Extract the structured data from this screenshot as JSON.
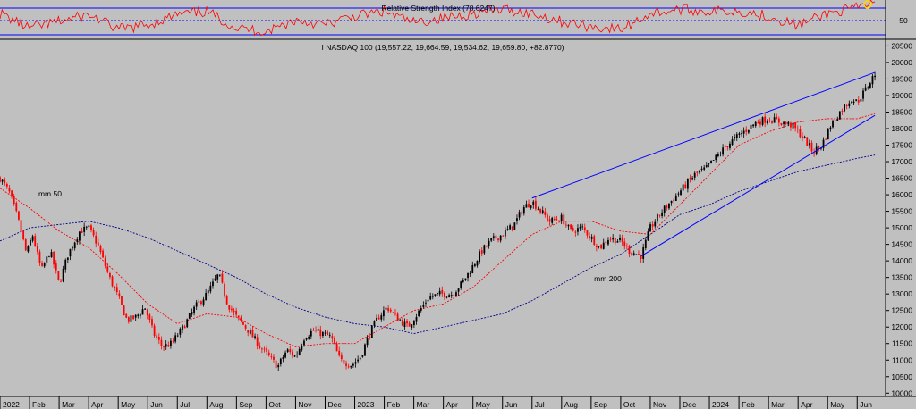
{
  "chart_data": {
    "type": "candlestick",
    "title": "I NASDAQ 100 (19,557.22, 19,664.59, 19,534.62, 19,659.80, +82.8770)",
    "rsi_title": "Relative Strength Index (78.6247)",
    "rsi_tick": "50",
    "rsi_levels": [
      30,
      50,
      70
    ],
    "ylim": [
      9900,
      20700
    ],
    "y_ticks": [
      "10000",
      "10500",
      "11000",
      "11500",
      "12000",
      "12500",
      "13000",
      "13500",
      "14000",
      "14500",
      "15000",
      "15500",
      "16000",
      "16500",
      "17000",
      "17500",
      "18000",
      "18500",
      "19000",
      "19500",
      "20000",
      "20500"
    ],
    "x_labels": [
      "2022",
      "Feb",
      "Mar",
      "Apr",
      "May",
      "Jun",
      "Jul",
      "Aug",
      "Sep",
      "Oct",
      "Nov",
      "Dec",
      "2023",
      "Feb",
      "Mar",
      "Apr",
      "May",
      "Jun",
      "Jul",
      "Aug",
      "Sep",
      "Oct",
      "Nov",
      "Dec",
      "2024",
      "Feb",
      "Mar",
      "Apr",
      "May",
      "Jun"
    ],
    "x_label_months": [
      0,
      1,
      2,
      3,
      4,
      5,
      6,
      7,
      8,
      9,
      10,
      11,
      12,
      13,
      14,
      15,
      16,
      17,
      18,
      19,
      20,
      21,
      22,
      23,
      24,
      25,
      26,
      27,
      28,
      29
    ],
    "price_path": [
      [
        0,
        16500
      ],
      [
        0.3,
        16100
      ],
      [
        0.6,
        15300
      ],
      [
        0.9,
        14200
      ],
      [
        1.1,
        14800
      ],
      [
        1.4,
        13700
      ],
      [
        1.7,
        14300
      ],
      [
        2.0,
        13300
      ],
      [
        2.3,
        14200
      ],
      [
        2.7,
        14900
      ],
      [
        3.0,
        15000
      ],
      [
        3.3,
        14500
      ],
      [
        3.7,
        13500
      ],
      [
        4.0,
        12900
      ],
      [
        4.3,
        12200
      ],
      [
        4.6,
        12300
      ],
      [
        4.9,
        12600
      ],
      [
        5.2,
        11800
      ],
      [
        5.5,
        11400
      ],
      [
        5.8,
        11500
      ],
      [
        6.2,
        12000
      ],
      [
        6.6,
        12600
      ],
      [
        7.0,
        13000
      ],
      [
        7.4,
        13600
      ],
      [
        7.7,
        12700
      ],
      [
        8.0,
        12300
      ],
      [
        8.4,
        11900
      ],
      [
        8.8,
        11400
      ],
      [
        9.1,
        11100
      ],
      [
        9.4,
        10800
      ],
      [
        9.7,
        11300
      ],
      [
        10.0,
        11100
      ],
      [
        10.3,
        11700
      ],
      [
        10.6,
        11900
      ],
      [
        10.9,
        11800
      ],
      [
        11.2,
        11700
      ],
      [
        11.5,
        11000
      ],
      [
        11.9,
        10850
      ],
      [
        12.2,
        11100
      ],
      [
        12.5,
        11800
      ],
      [
        12.8,
        12300
      ],
      [
        13.1,
        12600
      ],
      [
        13.4,
        12300
      ],
      [
        13.8,
        12000
      ],
      [
        14.2,
        12500
      ],
      [
        14.5,
        12900
      ],
      [
        14.9,
        13000
      ],
      [
        15.3,
        13000
      ],
      [
        15.6,
        13300
      ],
      [
        15.9,
        13700
      ],
      [
        16.3,
        14300
      ],
      [
        16.6,
        14600
      ],
      [
        17.0,
        14800
      ],
      [
        17.4,
        15100
      ],
      [
        17.7,
        15600
      ],
      [
        18.0,
        15800
      ],
      [
        18.3,
        15500
      ],
      [
        18.6,
        15200
      ],
      [
        19.0,
        15300
      ],
      [
        19.3,
        14900
      ],
      [
        19.7,
        15000
      ],
      [
        20.0,
        14700
      ],
      [
        20.3,
        14400
      ],
      [
        20.6,
        14700
      ],
      [
        21.0,
        14600
      ],
      [
        21.3,
        14300
      ],
      [
        21.7,
        14150
      ],
      [
        22.0,
        15000
      ],
      [
        22.4,
        15500
      ],
      [
        22.8,
        15900
      ],
      [
        23.1,
        16200
      ],
      [
        23.5,
        16600
      ],
      [
        23.9,
        16800
      ],
      [
        24.2,
        17100
      ],
      [
        24.6,
        17500
      ],
      [
        25.0,
        17800
      ],
      [
        25.3,
        18000
      ],
      [
        25.6,
        18200
      ],
      [
        26.0,
        18300
      ],
      [
        26.4,
        18200
      ],
      [
        26.8,
        18100
      ],
      [
        27.2,
        17700
      ],
      [
        27.5,
        17300
      ],
      [
        27.8,
        17500
      ],
      [
        28.1,
        18100
      ],
      [
        28.5,
        18600
      ],
      [
        28.8,
        18900
      ],
      [
        29.0,
        18800
      ],
      [
        29.3,
        19200
      ],
      [
        29.6,
        19660
      ]
    ],
    "ma50_path": [
      [
        0,
        16200
      ],
      [
        1,
        15600
      ],
      [
        2,
        14900
      ],
      [
        3,
        14400
      ],
      [
        4,
        13600
      ],
      [
        5,
        12700
      ],
      [
        6,
        12100
      ],
      [
        7,
        12400
      ],
      [
        8,
        12300
      ],
      [
        9,
        11800
      ],
      [
        10,
        11400
      ],
      [
        11,
        11500
      ],
      [
        12,
        11500
      ],
      [
        13,
        12000
      ],
      [
        14,
        12500
      ],
      [
        15,
        12700
      ],
      [
        16,
        13200
      ],
      [
        17,
        14000
      ],
      [
        18,
        14800
      ],
      [
        19,
        15200
      ],
      [
        20,
        15200
      ],
      [
        21,
        14900
      ],
      [
        22,
        14800
      ],
      [
        23,
        15700
      ],
      [
        24,
        16600
      ],
      [
        25,
        17500
      ],
      [
        26,
        17900
      ],
      [
        27,
        18200
      ],
      [
        28,
        18300
      ],
      [
        29,
        18300
      ],
      [
        29.6,
        18450
      ]
    ],
    "ma200_path": [
      [
        0,
        14600
      ],
      [
        1,
        15000
      ],
      [
        2,
        15100
      ],
      [
        3,
        15200
      ],
      [
        4,
        15000
      ],
      [
        5,
        14700
      ],
      [
        6,
        14300
      ],
      [
        7,
        13900
      ],
      [
        8,
        13500
      ],
      [
        9,
        13000
      ],
      [
        10,
        12600
      ],
      [
        11,
        12300
      ],
      [
        12,
        12100
      ],
      [
        13,
        12000
      ],
      [
        14,
        11800
      ],
      [
        15,
        12000
      ],
      [
        16,
        12200
      ],
      [
        17,
        12400
      ],
      [
        18,
        12800
      ],
      [
        19,
        13300
      ],
      [
        20,
        13800
      ],
      [
        21,
        14200
      ],
      [
        22,
        14800
      ],
      [
        23,
        15400
      ],
      [
        24,
        15700
      ],
      [
        25,
        16100
      ],
      [
        26,
        16400
      ],
      [
        27,
        16700
      ],
      [
        28,
        16900
      ],
      [
        29,
        17100
      ],
      [
        29.6,
        17200
      ]
    ],
    "rsi_path": [
      [
        0,
        62
      ],
      [
        1,
        40
      ],
      [
        2,
        50
      ],
      [
        3,
        60
      ],
      [
        4,
        38
      ],
      [
        5,
        45
      ],
      [
        6,
        60
      ],
      [
        7,
        65
      ],
      [
        8,
        40
      ],
      [
        9,
        35
      ],
      [
        10,
        52
      ],
      [
        11,
        45
      ],
      [
        12,
        58
      ],
      [
        13,
        65
      ],
      [
        14,
        48
      ],
      [
        15,
        55
      ],
      [
        16,
        62
      ],
      [
        17,
        68
      ],
      [
        18,
        62
      ],
      [
        19,
        50
      ],
      [
        20,
        42
      ],
      [
        21,
        38
      ],
      [
        22,
        62
      ],
      [
        23,
        68
      ],
      [
        24,
        65
      ],
      [
        25,
        66
      ],
      [
        26,
        58
      ],
      [
        27,
        44
      ],
      [
        28,
        62
      ],
      [
        29,
        70
      ],
      [
        29.6,
        78.6
      ]
    ],
    "channel_upper": [
      [
        18.0,
        15900
      ],
      [
        29.6,
        19700
      ]
    ],
    "channel_lower": [
      [
        21.7,
        14150
      ],
      [
        29.6,
        18400
      ]
    ],
    "annotations": {
      "ma50": "mm 50",
      "ma200": "mm 200"
    },
    "colors": {
      "background": "#c0c0c0",
      "up_candle": "#000000",
      "down_candle": "#ff0000",
      "ma50": "#ff0000",
      "ma200": "#00008b",
      "channel": "#0000ff",
      "rsi_line": "#ff0000",
      "rsi_levels": "#0000ff"
    },
    "grid": false
  }
}
